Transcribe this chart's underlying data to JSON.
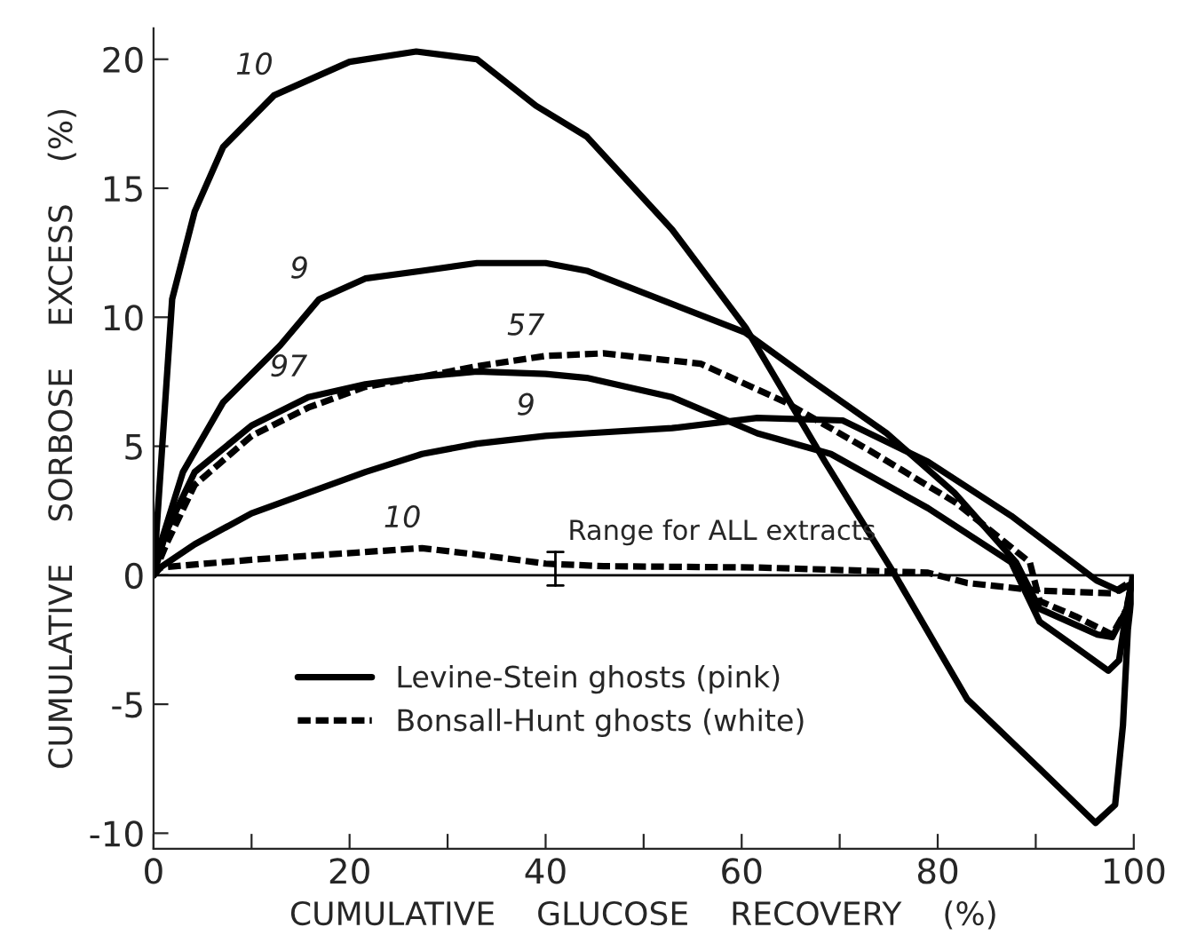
{
  "chart_data": {
    "type": "line",
    "xlabel": "CUMULATIVE    GLUCOSE    RECOVERY    (%)",
    "ylabel": "CUMULATIVE    SORBOSE    EXCESS    (%)",
    "xlim": [
      0,
      100
    ],
    "ylim": [
      -10.6,
      21.2
    ],
    "xticks": [
      0,
      {
        "value": 10,
        "label": null
      },
      20,
      {
        "value": 30,
        "label": null
      },
      40,
      {
        "value": 50,
        "label": null
      },
      60,
      {
        "value": 70,
        "label": null
      },
      80,
      {
        "value": 90,
        "label": null
      },
      100
    ],
    "yticks": [
      -10,
      -5,
      0,
      5,
      10,
      15,
      20
    ],
    "grid": false,
    "legend": "left",
    "marker": "none",
    "ref_lines": [
      {
        "axis": "y",
        "value": 0,
        "color": "#000000",
        "line_style": "solid"
      }
    ],
    "series": [
      {
        "name": "Levine-Stein ghosts (pink)",
        "color": "#000000",
        "line_style": "solid",
        "x": [
          0,
          1.9,
          4.2,
          7.1,
          12.3,
          20,
          26.8,
          33,
          39,
          44.2,
          52.9,
          60.4,
          68.5,
          75.5,
          83,
          90.4,
          96.1,
          98.1,
          98.9,
          99.4,
          99.9
        ],
        "values": [
          0,
          10.7,
          14.1,
          16.6,
          18.6,
          19.9,
          20.3,
          20,
          18.2,
          17.0,
          13.4,
          9.6,
          4.4,
          0.1,
          -4.8,
          -7.5,
          -9.6,
          -8.9,
          -5.8,
          -2.1,
          -0.4
        ]
      },
      {
        "color": "#000000",
        "line_style": "solid",
        "x": [
          0,
          0.7,
          3,
          7.1,
          12.9,
          16.9,
          21.6,
          27.4,
          33,
          40,
          44.2,
          60.4,
          67.3,
          74.8,
          81.7,
          88,
          90.4,
          96.3,
          97.8,
          99.3,
          99.9
        ],
        "values": [
          0,
          1.2,
          4,
          6.7,
          8.9,
          10.7,
          11.5,
          11.8,
          12.1,
          12.1,
          11.8,
          9.4,
          7.5,
          5.5,
          3.2,
          0.5,
          -1.3,
          -2.3,
          -2.4,
          -1.3,
          -0.1
        ]
      },
      {
        "color": "#000000",
        "line_style": "solid",
        "x": [
          0,
          1.3,
          4.2,
          10,
          15.8,
          21.6,
          27.4,
          33,
          40,
          44.2,
          52.9,
          61.6,
          69.1,
          79,
          87.5,
          90.4,
          94.1,
          97.4,
          98.5,
          99.4,
          99.9
        ],
        "values": [
          0,
          1.7,
          4,
          5.8,
          6.9,
          7.4,
          7.7,
          7.9,
          7.8,
          7.65,
          6.9,
          5.5,
          4.7,
          2.6,
          0.5,
          -1.8,
          -2.8,
          -3.7,
          -3.3,
          -1,
          -0.1
        ]
      },
      {
        "color": "#000000",
        "line_style": "solid",
        "x": [
          0,
          0.7,
          4.2,
          10,
          15.8,
          21.6,
          27.4,
          33,
          40,
          44.2,
          52.9,
          61.6,
          70.3,
          79,
          87.5,
          96.2,
          98.5,
          99.9
        ],
        "values": [
          0,
          0.3,
          1.2,
          2.4,
          3.2,
          4.0,
          4.7,
          5.1,
          5.4,
          5.5,
          5.7,
          6.1,
          6.0,
          4.4,
          2.3,
          -0.2,
          -0.6,
          -0.3
        ]
      },
      {
        "name": "Bonsall-Hunt ghosts (white)",
        "color": "#000000",
        "line_style": "dashed",
        "x": [
          0,
          1.3,
          4.2,
          10,
          15.8,
          21.6,
          27.4,
          33,
          40,
          45.9,
          55.8,
          64.5,
          73.2,
          81.9,
          89.4,
          90.4,
          94.1,
          97.8,
          99.3,
          99.9
        ],
        "values": [
          0,
          1.2,
          3.5,
          5.4,
          6.5,
          7.3,
          7.7,
          8.1,
          8.5,
          8.6,
          8.2,
          6.7,
          4.8,
          2.8,
          0.5,
          -1,
          -1.6,
          -2.3,
          -1.3,
          0
        ]
      },
      {
        "color": "#000000",
        "line_style": "dashed",
        "x": [
          0,
          0.7,
          10,
          21.6,
          27.4,
          33,
          40,
          45.9,
          61.6,
          79,
          83,
          90.4,
          97.8,
          99.9
        ],
        "values": [
          0,
          0.3,
          0.6,
          0.9,
          1.05,
          0.8,
          0.45,
          0.35,
          0.3,
          0.1,
          -0.3,
          -0.6,
          -0.7,
          -0.2
        ]
      }
    ],
    "annotations": [
      {
        "text": "10",
        "x": 12.3,
        "y": 18.6
      },
      {
        "text": "9",
        "x": 16.9,
        "y": 10.7
      },
      {
        "text": "97",
        "x": 15.8,
        "y": 6.9
      },
      {
        "text": "57",
        "x": 40,
        "y": 8.5
      },
      {
        "text": "9",
        "x": 40,
        "y": 5.4
      },
      {
        "text": "10",
        "x": 27.4,
        "y": 1.05
      },
      {
        "text": "Range for ALL extracts",
        "x": 41,
        "y": 0.9
      }
    ]
  }
}
